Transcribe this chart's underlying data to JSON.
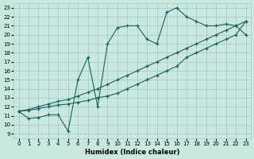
{
  "xlabel": "Humidex (Indice chaleur)",
  "xlim": [
    -0.5,
    23.5
  ],
  "ylim": [
    8.5,
    23.5
  ],
  "xticks": [
    0,
    1,
    2,
    3,
    4,
    5,
    6,
    7,
    8,
    9,
    10,
    11,
    12,
    13,
    14,
    15,
    16,
    17,
    18,
    19,
    20,
    21,
    22,
    23
  ],
  "yticks": [
    9,
    10,
    11,
    12,
    13,
    14,
    15,
    16,
    17,
    18,
    19,
    20,
    21,
    22,
    23
  ],
  "bg_color": "#c8e8e0",
  "grid_color": "#a0c8c0",
  "line_color": "#1a6060",
  "line1_x": [
    0,
    1,
    2,
    3,
    4,
    5,
    6,
    7,
    8,
    9,
    10,
    11,
    12,
    13,
    14,
    15,
    16,
    17,
    18,
    19,
    20,
    21,
    22,
    23
  ],
  "line1_y": [
    11.5,
    10.7,
    10.8,
    11.1,
    11.1,
    9.3,
    15.0,
    17.5,
    12.0,
    19.0,
    20.8,
    21.0,
    21.0,
    19.5,
    19.0,
    22.5,
    23.0,
    22.0,
    21.5,
    21.0,
    21.0,
    21.2,
    21.0,
    20.0
  ],
  "line2_x": [
    0,
    1,
    2,
    3,
    4,
    5,
    6,
    7,
    8,
    9,
    10,
    11,
    12,
    13,
    14,
    15,
    16,
    17,
    18,
    19,
    20,
    21,
    22,
    23
  ],
  "line2_y": [
    11.5,
    11.6,
    11.8,
    12.0,
    12.2,
    12.3,
    12.5,
    12.7,
    13.0,
    13.2,
    13.5,
    14.0,
    14.5,
    15.0,
    15.5,
    16.0,
    16.5,
    17.5,
    18.0,
    18.5,
    19.0,
    19.5,
    20.0,
    21.5
  ],
  "line3_x": [
    0,
    1,
    2,
    3,
    4,
    5,
    6,
    7,
    8,
    9,
    10,
    11,
    12,
    13,
    14,
    15,
    16,
    17,
    18,
    19,
    20,
    21,
    22,
    23
  ],
  "line3_y": [
    11.5,
    11.7,
    12.0,
    12.3,
    12.6,
    12.8,
    13.2,
    13.6,
    14.0,
    14.5,
    15.0,
    15.5,
    16.0,
    16.5,
    17.0,
    17.5,
    18.0,
    18.5,
    19.0,
    19.5,
    20.0,
    20.5,
    21.0,
    21.5
  ]
}
